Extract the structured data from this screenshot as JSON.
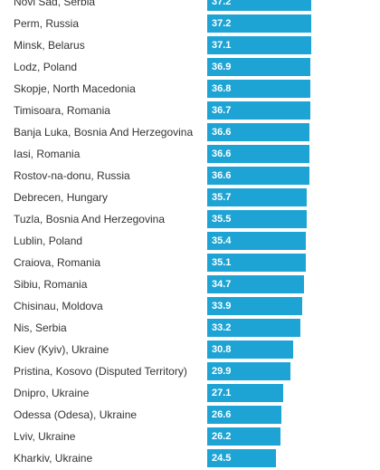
{
  "chart_data": {
    "type": "bar",
    "orientation": "horizontal",
    "bar_color": "#1ea4d4",
    "label_color": "#333333",
    "value_label_color": "#ffffff",
    "categories": [
      "Novi Sad, Serbia",
      "Perm, Russia",
      "Minsk, Belarus",
      "Lodz, Poland",
      "Skopje, North Macedonia",
      "Timisoara, Romania",
      "Banja Luka, Bosnia And Herzegovina",
      "Iasi, Romania",
      "Rostov-na-donu, Russia",
      "Debrecen, Hungary",
      "Tuzla, Bosnia And Herzegovina",
      "Lublin, Poland",
      "Craiova, Romania",
      "Sibiu, Romania",
      "Chisinau, Moldova",
      "Nis, Serbia",
      "Kiev (Kyiv), Ukraine",
      "Pristina, Kosovo (Disputed Territory)",
      "Dnipro, Ukraine",
      "Odessa (Odesa), Ukraine",
      "Lviv, Ukraine",
      "Kharkiv, Ukraine"
    ],
    "values": [
      37.2,
      37.2,
      37.1,
      36.9,
      36.8,
      36.7,
      36.6,
      36.6,
      36.6,
      35.7,
      35.5,
      35.4,
      35.1,
      34.7,
      33.9,
      33.2,
      30.8,
      29.9,
      27.1,
      26.6,
      26.2,
      24.5
    ],
    "value_labels": [
      "37.2",
      "37.2",
      "37.1",
      "36.9",
      "36.8",
      "36.7",
      "36.6",
      "36.6",
      "36.6",
      "35.7",
      "35.5",
      "35.4",
      "35.1",
      "34.7",
      "33.9",
      "33.2",
      "30.8",
      "29.9",
      "27.1",
      "26.6",
      "26.2",
      "24.5"
    ],
    "title": "",
    "xlabel": "",
    "ylabel": "",
    "xlim": [
      0,
      37.2
    ],
    "grid": false,
    "legend": "none"
  }
}
